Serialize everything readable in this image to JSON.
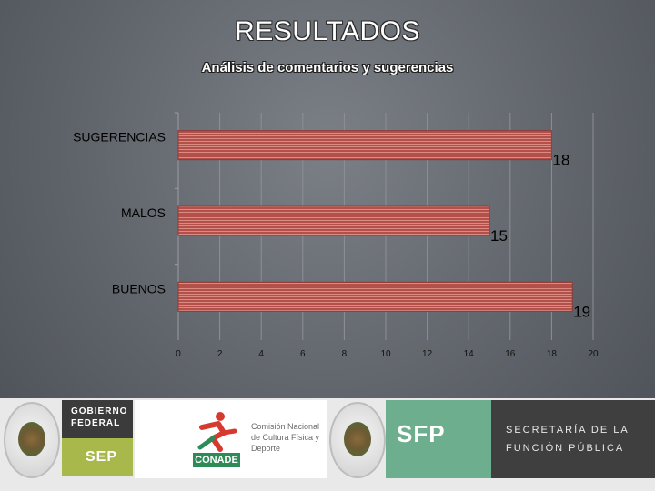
{
  "title": "RESULTADOS",
  "subtitle": "Análisis de comentarios y sugerencias",
  "chart_data": {
    "type": "bar",
    "orientation": "horizontal",
    "categories": [
      "SUGERENCIAS",
      "MALOS",
      "BUENOS"
    ],
    "values": [
      18,
      15,
      19
    ],
    "xlim": [
      0,
      20
    ],
    "xticks": [
      0,
      2,
      4,
      6,
      8,
      10,
      12,
      14,
      16,
      18,
      20
    ],
    "grid": true,
    "legend": "none",
    "bar_color": "#b4504a",
    "label_color": "#000000"
  },
  "footer": {
    "gobierno_line1": "GOBIERNO",
    "gobierno_line2": "FEDERAL",
    "sep": "SEP",
    "conade_name": "Comisión Nacional de Cultura Física y Deporte",
    "conade_word": "CONADE",
    "sfp": "SFP",
    "secretaria_line1": "SECRETARÍA DE LA",
    "secretaria_line2": "FUNCIÓN PÚBLICA"
  }
}
